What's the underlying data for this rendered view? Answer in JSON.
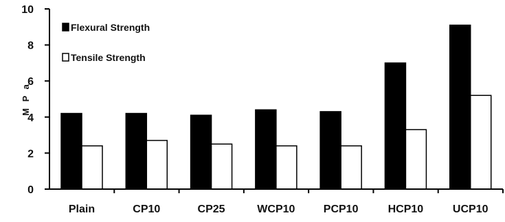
{
  "chart_data": {
    "type": "bar",
    "categories": [
      "Plain",
      "CP10",
      "CP25",
      "WCP10",
      "PCP10",
      "HCP10",
      "UCP10"
    ],
    "series": [
      {
        "name": "Flexural Strength",
        "values": [
          4.2,
          4.2,
          4.1,
          4.4,
          4.3,
          7.0,
          9.1
        ],
        "color": "#000000"
      },
      {
        "name": "Tensile Strength",
        "values": [
          2.4,
          2.7,
          2.5,
          2.4,
          2.4,
          3.3,
          5.2
        ],
        "color": "#ffffff"
      }
    ],
    "title": "",
    "xlabel": "",
    "ylabel": "M P a",
    "ylim": [
      0,
      10
    ],
    "yticks": [
      0,
      2,
      4,
      6,
      8,
      10
    ],
    "grid": false,
    "legend_position": "top-left"
  }
}
